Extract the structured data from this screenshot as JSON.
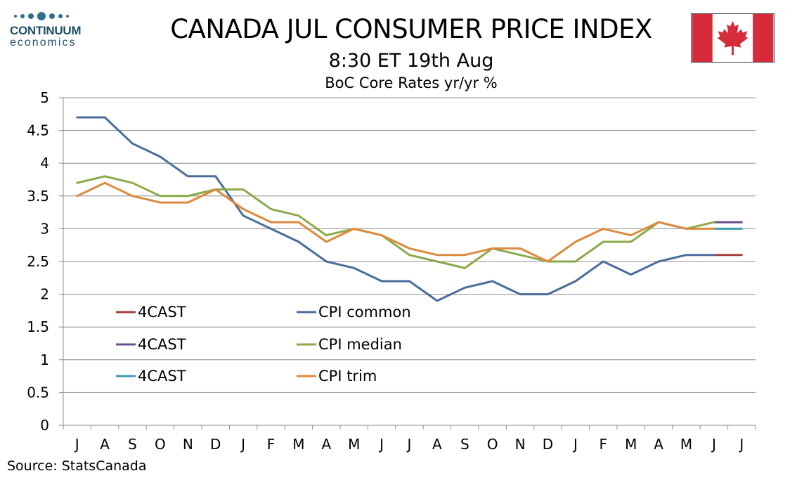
{
  "logo": {
    "name": "CONTINUUM",
    "sub": "economics"
  },
  "header": {
    "title": "CANADA JUL CONSUMER PRICE INDEX",
    "subtitle": "8:30 ET 19th Aug"
  },
  "footer": {
    "source": "Source: StatsCanada"
  },
  "colors": {
    "cpi_common": "#4a6d9b",
    "cpi_median": "#8aaa4a",
    "cpi_trim": "#dc8a3e",
    "forecast_common": "#a4413e",
    "forecast_median": "#6d4f8f",
    "forecast_trim": "#3f9db0",
    "flag_red": "#d52b3b",
    "logo_blue": "#2f6d8f"
  },
  "chart_data": {
    "type": "line",
    "title": "BoC Core Rates yr/yr %",
    "categories": [
      "J",
      "A",
      "S",
      "O",
      "N",
      "D",
      "J",
      "F",
      "M",
      "A",
      "M",
      "J",
      "J",
      "A",
      "S",
      "O",
      "N",
      "D",
      "J",
      "F",
      "M",
      "A",
      "M",
      "J",
      "J"
    ],
    "ylim": [
      0,
      5
    ],
    "yticks": [
      "0",
      "0.5",
      "1",
      "1.5",
      "2",
      "2.5",
      "3",
      "3.5",
      "4",
      "4.5",
      "5"
    ],
    "grid": true,
    "series": [
      {
        "name": "CPI common",
        "values": [
          4.7,
          4.7,
          4.3,
          4.1,
          3.8,
          3.8,
          3.2,
          3.0,
          2.8,
          2.5,
          2.4,
          2.2,
          2.2,
          1.9,
          2.1,
          2.2,
          2.0,
          2.0,
          2.2,
          2.5,
          2.3,
          2.5,
          2.6,
          2.6,
          null
        ]
      },
      {
        "name": "CPI median",
        "values": [
          3.7,
          3.8,
          3.7,
          3.5,
          3.5,
          3.6,
          3.6,
          3.3,
          3.2,
          2.9,
          3.0,
          2.9,
          2.6,
          2.5,
          2.4,
          2.7,
          2.6,
          2.5,
          2.5,
          2.8,
          2.8,
          3.1,
          3.0,
          3.1,
          null
        ]
      },
      {
        "name": "CPI trim",
        "values": [
          3.5,
          3.7,
          3.5,
          3.4,
          3.4,
          3.6,
          3.3,
          3.1,
          3.1,
          2.8,
          3.0,
          2.9,
          2.7,
          2.6,
          2.6,
          2.7,
          2.7,
          2.5,
          2.8,
          3.0,
          2.9,
          3.1,
          3.0,
          3.0,
          null
        ]
      },
      {
        "name": "4CAST",
        "of": "CPI common",
        "values": [
          null,
          null,
          null,
          null,
          null,
          null,
          null,
          null,
          null,
          null,
          null,
          null,
          null,
          null,
          null,
          null,
          null,
          null,
          null,
          null,
          null,
          null,
          null,
          2.6,
          2.6
        ]
      },
      {
        "name": "4CAST",
        "of": "CPI median",
        "values": [
          null,
          null,
          null,
          null,
          null,
          null,
          null,
          null,
          null,
          null,
          null,
          null,
          null,
          null,
          null,
          null,
          null,
          null,
          null,
          null,
          null,
          null,
          null,
          3.1,
          3.1
        ]
      },
      {
        "name": "4CAST",
        "of": "CPI trim",
        "values": [
          null,
          null,
          null,
          null,
          null,
          null,
          null,
          null,
          null,
          null,
          null,
          null,
          null,
          null,
          null,
          null,
          null,
          null,
          null,
          null,
          null,
          null,
          null,
          3.0,
          3.0
        ]
      }
    ],
    "legend": [
      {
        "label": "4CAST",
        "series": 3
      },
      {
        "label": "CPI common",
        "series": 0
      },
      {
        "label": "4CAST",
        "series": 4
      },
      {
        "label": "CPI median",
        "series": 1
      },
      {
        "label": "4CAST",
        "series": 5
      },
      {
        "label": "CPI trim",
        "series": 2
      }
    ],
    "legend_placement": "lower-left"
  }
}
